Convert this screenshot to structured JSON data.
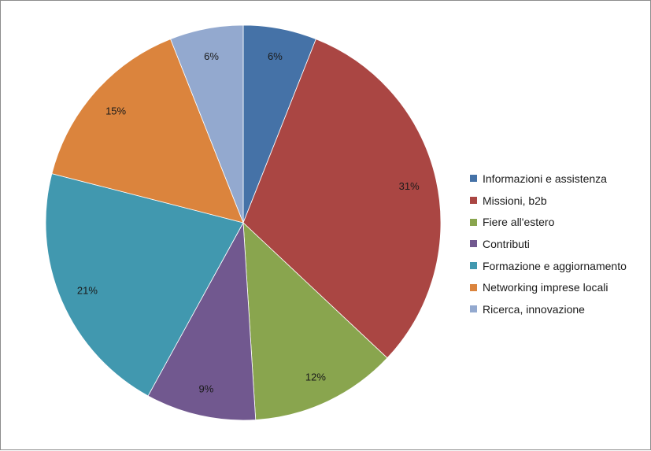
{
  "chart_data": {
    "type": "pie",
    "title": "",
    "categories": [
      "Informazioni e assistenza",
      "Missioni, b2b",
      "Fiere all'estero",
      "Contributi",
      "Formazione e aggiornamento",
      "Networking imprese locali",
      "Ricerca, innovazione"
    ],
    "values": [
      6,
      31,
      12,
      9,
      21,
      15,
      6
    ],
    "labels": [
      "6%",
      "31%",
      "12%",
      "9%",
      "21%",
      "15%",
      "6%"
    ],
    "colors": [
      "#4572A7",
      "#AA4643",
      "#89A54E",
      "#71588F",
      "#4198AF",
      "#DB843D",
      "#93A9CF"
    ],
    "legend_position": "right"
  }
}
